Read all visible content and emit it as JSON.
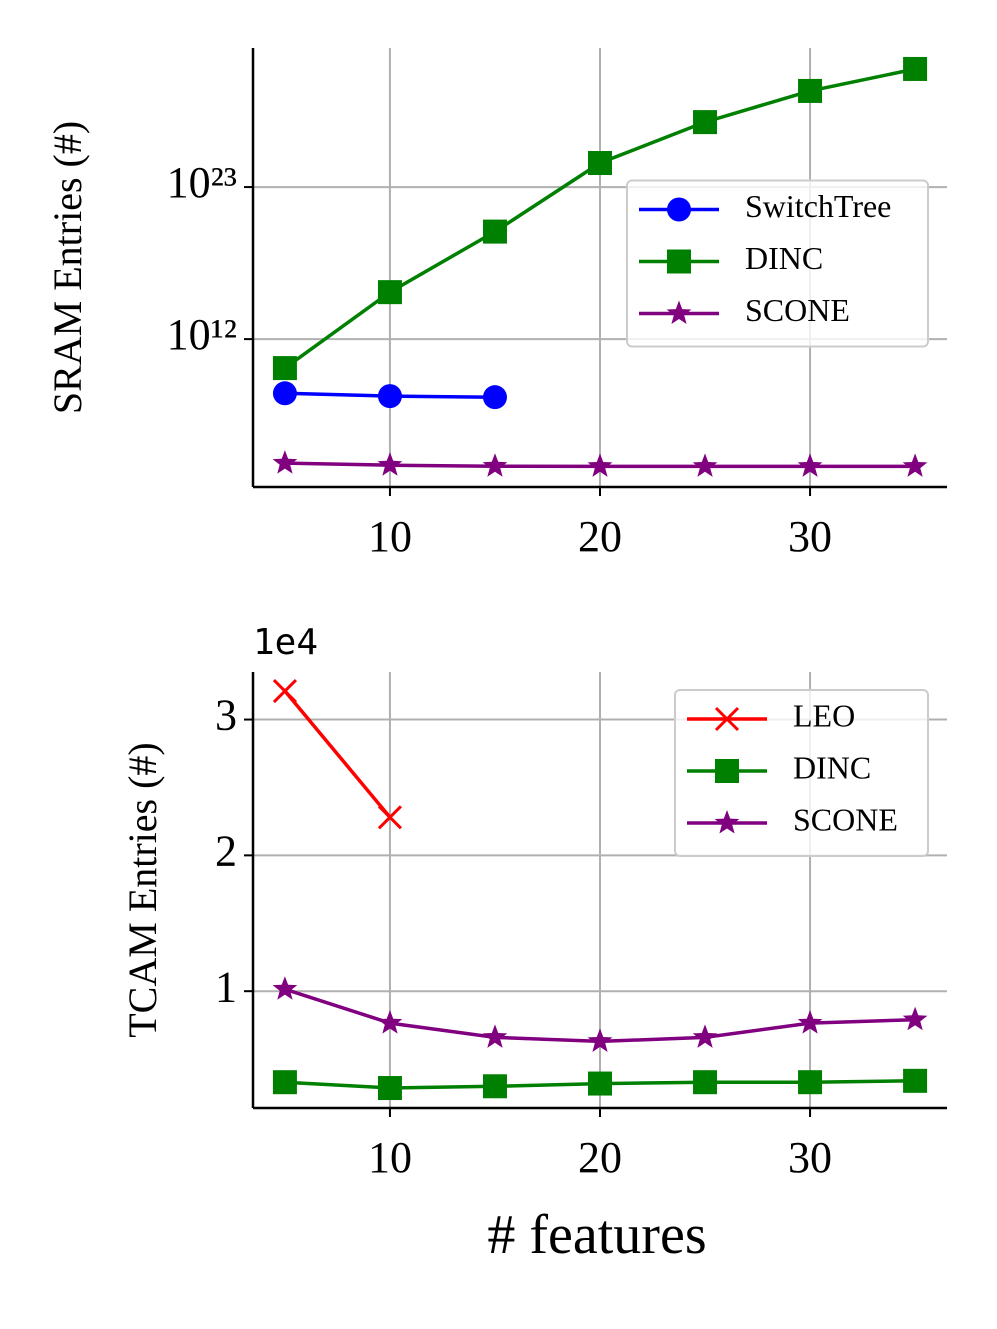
{
  "chart_data": [
    {
      "type": "line",
      "ylabel": "SRAM Entries (#)",
      "log_y": true,
      "grid": true,
      "legend": "center right",
      "x": [
        5,
        10,
        15,
        20,
        25,
        30,
        35
      ],
      "xlim": [
        3.48,
        36.52
      ],
      "xticks": [
        10,
        20,
        30
      ],
      "ylim": [
        20,
        1.15e+33
      ],
      "yticks": [
        {
          "value": 1000000000000.0,
          "label": "10¹²"
        },
        {
          "value": 1e+23,
          "label": "10²³"
        }
      ],
      "series": [
        {
          "name": "SwitchTree",
          "color": "#0000ff",
          "marker": "circle",
          "values": [
            120000000.0,
            75000000.0,
            63000000.0,
            null,
            null,
            null,
            null
          ]
        },
        {
          "name": "DINC",
          "color": "#008000",
          "marker": "square",
          "values": [
            8000000000.0,
            2500000000000000.0,
            6e+19,
            5.5e+24,
            5e+27,
            9e+29,
            3.5e+31
          ]
        },
        {
          "name": "SCONE",
          "color": "#800080",
          "marker": "star",
          "values": [
            1070,
            750,
            640,
            620,
            620,
            620,
            620
          ]
        }
      ]
    },
    {
      "type": "line",
      "ylabel": "TCAM Entries (#)",
      "xlabel": "# features",
      "offset_text": "1e4",
      "log_y": false,
      "grid": true,
      "legend": "upper right",
      "x": [
        5,
        10,
        15,
        20,
        25,
        30,
        35
      ],
      "xlim": [
        3.48,
        36.52
      ],
      "xticks": [
        10,
        20,
        30
      ],
      "ylim": [
        1400,
        33500
      ],
      "yticks": [
        {
          "value": 10000,
          "label": "1"
        },
        {
          "value": 20000,
          "label": "2"
        },
        {
          "value": 30000,
          "label": "3"
        }
      ],
      "series": [
        {
          "name": "LEO",
          "color": "#ff0000",
          "marker": "x",
          "values": [
            32100,
            22800,
            null,
            null,
            null,
            null,
            null
          ]
        },
        {
          "name": "DINC",
          "color": "#008000",
          "marker": "square",
          "values": [
            3300,
            2870,
            3000,
            3200,
            3300,
            3300,
            3400
          ]
        },
        {
          "name": "SCONE",
          "color": "#800080",
          "marker": "star",
          "values": [
            10150,
            7650,
            6600,
            6300,
            6600,
            7650,
            7900
          ]
        }
      ]
    }
  ]
}
